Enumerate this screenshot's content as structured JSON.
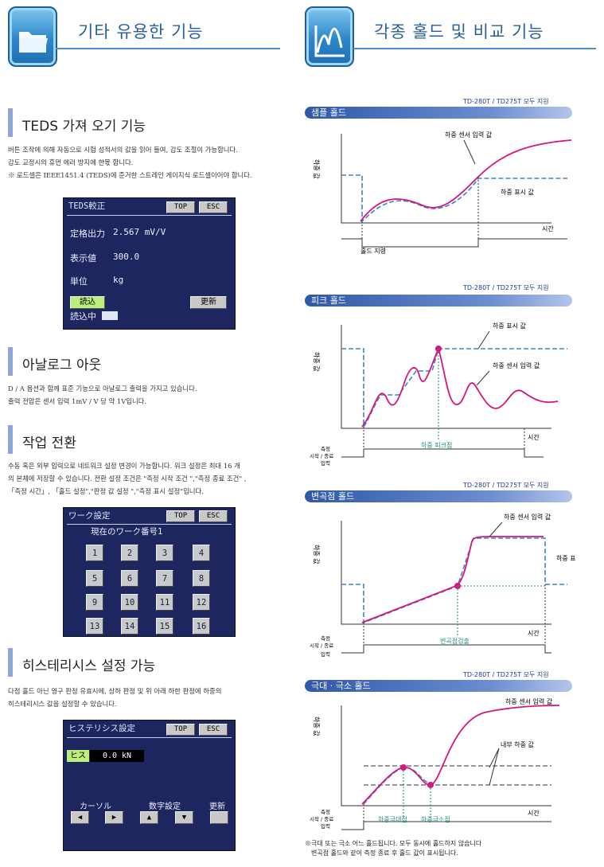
{
  "header_left": {
    "title": "기타 유용한 기능"
  },
  "header_right": {
    "title": "각종 홀드 및 비교 기능"
  },
  "teds": {
    "title": "TEDS 가져 오기 기능",
    "lines": [
      "버튼 조작에 의해 자동으로 시험 성적서의 값을 읽어 들여, 감도 조절이 가능합니다.",
      "감도 교정시의 휴먼 에러 방지에 한몫 합니다.",
      "※ 로드셀은 IEEE1451.4 (TEDS)에 준거한 스트레인 게이지식 로드셀이어야 합니다."
    ],
    "screen": {
      "title": "TEDS較正",
      "top": "TOP",
      "esc": "ESC",
      "rows": [
        {
          "label": "定格出力",
          "value": "2.567 mV/V"
        },
        {
          "label": "表示値",
          "value": "300.0"
        },
        {
          "label": "単位",
          "value": "kg"
        }
      ],
      "read": "読込",
      "update": "更新",
      "reading": "読込中"
    }
  },
  "analog": {
    "title": "아날로그 아웃",
    "lines": [
      "D / A 옵션과 함께 표준 기능으로 아날로그 출력을 가지고 있습니다.",
      "출력 전압은 센서 입력 1mV / V 당 약 1V입니다."
    ]
  },
  "work": {
    "title": "작업 전환",
    "lines": [
      "수동 혹은 외부 입력으로 네트워크 설정 변경이 가능합니다. 워크 설정은 최대 16 개",
      "의 본체에 저장할 수 있습니다. 전환 설정 조건은 \"측정 시작 조건 \",\"측정 종료 조건\" ,",
      "「측정 시간」, 「홀드 설정\",\"판정 값 설정 \",\"측정 표시 설정\"입니다."
    ],
    "screen": {
      "title": "ワーク設定",
      "top": "TOP",
      "esc": "ESC",
      "current": "現在のワーク番号1",
      "numbers": [
        "1",
        "2",
        "3",
        "4",
        "5",
        "6",
        "7",
        "8",
        "9",
        "10",
        "11",
        "12",
        "13",
        "14",
        "15",
        "16"
      ]
    }
  },
  "hyst": {
    "title": "히스테리시스 설정 가능",
    "lines": [
      "다점 홀드 아닌 영구 판정 유효시에, 상하 판정 및 위 아래 하한 판정에 하중의",
      "히스테리시스 값을 설정할 수 있습니다."
    ],
    "screen": {
      "title": "ヒステリシス設定",
      "top": "TOP",
      "esc": "ESC",
      "tag": "ヒス",
      "value": "0.0 kN",
      "cursor": "カーソル",
      "numset": "数字設定",
      "update": "更新"
    }
  },
  "support": "TD-280T / TD275T 모두 지원",
  "charts": [
    {
      "pill": "샘플 홀드",
      "ylabel": "하중 값",
      "xlabel": "시간",
      "ann_input": "하중 센서 입력 값",
      "ann_display": "하중 표시 값",
      "ann_bottom": "홀드 지령"
    },
    {
      "pill": "피크 홀드",
      "ylabel": "하중 값",
      "xlabel": "시간",
      "ann_display": "하중 표시 값",
      "ann_input": "하중 센서 입력 값",
      "ann_point": "하중 피크점",
      "ctrl": [
        "측정",
        "시작 / 종료",
        "입력"
      ]
    },
    {
      "pill": "변곡점 홀드",
      "ylabel": "하중 값",
      "xlabel": "시간",
      "ann_input": "하중 센서 입력 값",
      "ann_display": "하중 표시 값",
      "ann_point": "변곡점검출",
      "ctrl": [
        "측정",
        "시작 / 종료",
        "입력"
      ]
    },
    {
      "pill": "극대 · 극소 홀드",
      "ylabel": "하중 값",
      "xlabel": "시간",
      "ann_input": "하중 센서 입력 값",
      "ann_internal": "내부 하중 값",
      "ann_max": "하중극대점",
      "ann_min": "하중극소점",
      "ctrl": [
        "측정",
        "시작 / 종료",
        "입력"
      ]
    }
  ],
  "footnote": [
    "※극대 또는 극소 어느 홀드됩니다. 모두 동시에 홀드하지 않습니다",
    "변곡점 홀드와 같이 측정 종료 후 홀드 값이 표시됩니다."
  ],
  "colors": {
    "input_curve": "#d6157d",
    "display_line": "#3a86c8",
    "accent": "#2b5e9e",
    "lcd_bg": "#1e2660",
    "guide": "#1a8f86"
  }
}
